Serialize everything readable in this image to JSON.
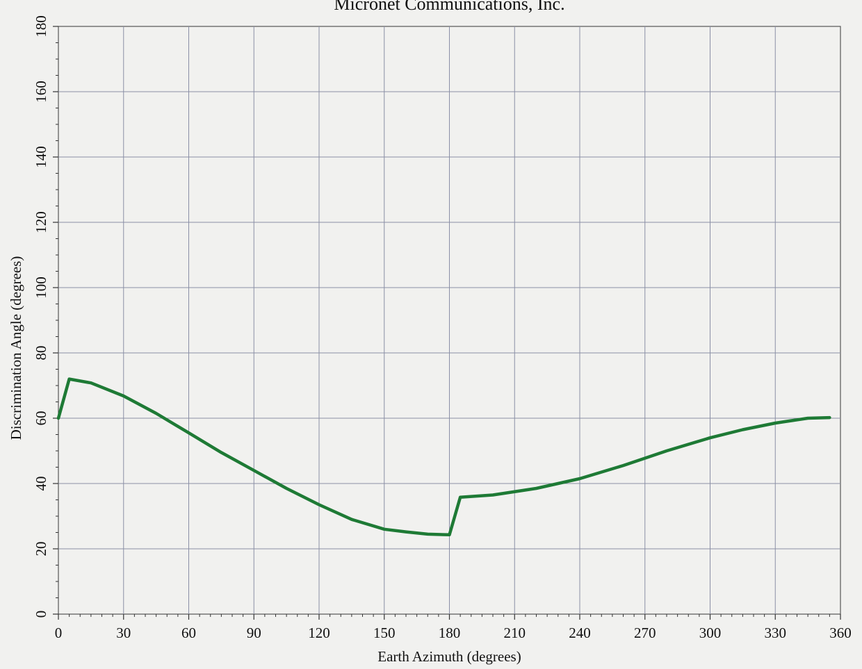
{
  "chart_data": {
    "type": "line",
    "title": "Micronet Communications, Inc.",
    "xlabel": "Earth Azimuth (degrees)",
    "ylabel": "Discrimination Angle (degrees)",
    "xlim": [
      0,
      360
    ],
    "ylim": [
      0,
      180
    ],
    "x_ticks": [
      0,
      30,
      60,
      90,
      120,
      150,
      180,
      210,
      240,
      270,
      300,
      330,
      360
    ],
    "y_ticks": [
      0,
      20,
      40,
      60,
      80,
      100,
      120,
      140,
      160,
      180
    ],
    "grid": true,
    "series": [
      {
        "color": "#1e7a35",
        "x": [
          0,
          5,
          15,
          30,
          45,
          60,
          75,
          90,
          105,
          120,
          135,
          150,
          160,
          170,
          180,
          185,
          200,
          220,
          240,
          260,
          280,
          300,
          315,
          330,
          345,
          355
        ],
        "y": [
          60,
          72,
          70.8,
          66.8,
          61.5,
          55.5,
          49.5,
          44,
          38.5,
          33.5,
          29,
          26,
          25.2,
          24.5,
          24.3,
          35.8,
          36.5,
          38.5,
          41.5,
          45.5,
          50,
          54,
          56.5,
          58.5,
          60,
          60.2
        ]
      }
    ]
  }
}
